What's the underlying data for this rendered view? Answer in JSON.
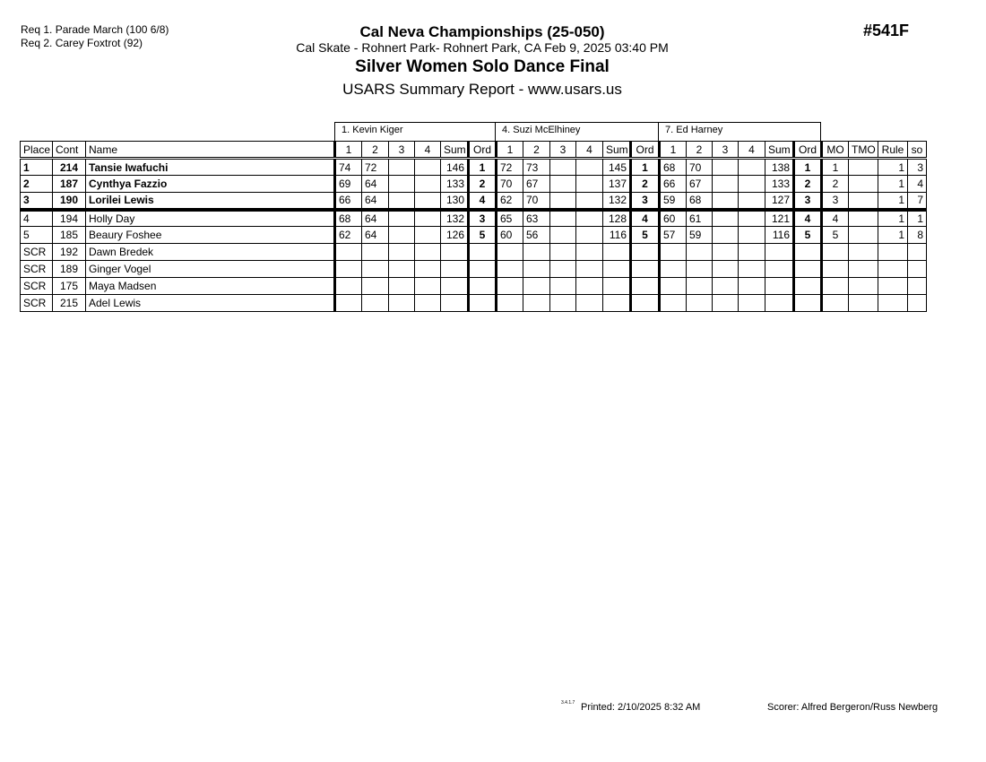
{
  "header": {
    "requirements": [
      "Req  1.  Parade March (100 6/8)",
      "Req  2.  Carey Foxtrot (92)"
    ],
    "competition": "Cal Neva Championships (25-050)",
    "location": "Cal Skate - Rohnert Park- Rohnert Park, CA  Feb 9, 2025  03:40 PM",
    "event": "Silver Women Solo Dance Final",
    "report": "USARS Summary Report - www.usars.us",
    "event_number": "#541F"
  },
  "judges": [
    "1.  Kevin Kiger",
    "4.  Suzi McElhiney",
    "7.  Ed Harney"
  ],
  "columns": {
    "place": "Place",
    "cont": "Cont",
    "name": "Name",
    "judge_cols": [
      "1",
      "2",
      "3",
      "4",
      "Sum",
      "Ord"
    ],
    "mo": "MO",
    "tmo": "TMO",
    "rule": "Rule",
    "so": "so"
  },
  "rows": [
    {
      "place": "1",
      "cont": "214",
      "name": "Tansie Iwafuchi",
      "bold": true,
      "scores": [
        [
          "74",
          "72",
          "",
          "",
          "146",
          "1"
        ],
        [
          "72",
          "73",
          "",
          "",
          "145",
          "1"
        ],
        [
          "68",
          "70",
          "",
          "",
          "138",
          "1"
        ]
      ],
      "mo": "1",
      "tmo": "",
      "rule": "1",
      "so": "3"
    },
    {
      "place": "2",
      "cont": "187",
      "name": "Cynthya Fazzio",
      "bold": true,
      "scores": [
        [
          "69",
          "64",
          "",
          "",
          "133",
          "2"
        ],
        [
          "70",
          "67",
          "",
          "",
          "137",
          "2"
        ],
        [
          "66",
          "67",
          "",
          "",
          "133",
          "2"
        ]
      ],
      "mo": "2",
      "tmo": "",
      "rule": "1",
      "so": "4"
    },
    {
      "place": "3",
      "cont": "190",
      "name": "Lorilei Lewis",
      "bold": true,
      "scores": [
        [
          "66",
          "64",
          "",
          "",
          "130",
          "4"
        ],
        [
          "62",
          "70",
          "",
          "",
          "132",
          "3"
        ],
        [
          "59",
          "68",
          "",
          "",
          "127",
          "3"
        ]
      ],
      "mo": "3",
      "tmo": "",
      "rule": "1",
      "so": "7"
    },
    {
      "place": "4",
      "cont": "194",
      "name": "Holly Day",
      "bold": false,
      "scores": [
        [
          "68",
          "64",
          "",
          "",
          "132",
          "3"
        ],
        [
          "65",
          "63",
          "",
          "",
          "128",
          "4"
        ],
        [
          "60",
          "61",
          "",
          "",
          "121",
          "4"
        ]
      ],
      "mo": "4",
      "tmo": "",
      "rule": "1",
      "so": "1"
    },
    {
      "place": "5",
      "cont": "185",
      "name": "Beaury Foshee",
      "bold": false,
      "scores": [
        [
          "62",
          "64",
          "",
          "",
          "126",
          "5"
        ],
        [
          "60",
          "56",
          "",
          "",
          "116",
          "5"
        ],
        [
          "57",
          "59",
          "",
          "",
          "116",
          "5"
        ]
      ],
      "mo": "5",
      "tmo": "",
      "rule": "1",
      "so": "8"
    },
    {
      "place": "SCR",
      "cont": "192",
      "name": "Dawn Bredek",
      "bold": false,
      "scores": [
        [
          "",
          "",
          "",
          "",
          "",
          ""
        ],
        [
          "",
          "",
          "",
          "",
          "",
          ""
        ],
        [
          "",
          "",
          "",
          "",
          "",
          ""
        ]
      ],
      "mo": "",
      "tmo": "",
      "rule": "",
      "so": ""
    },
    {
      "place": "SCR",
      "cont": "189",
      "name": "Ginger Vogel",
      "bold": false,
      "scores": [
        [
          "",
          "",
          "",
          "",
          "",
          ""
        ],
        [
          "",
          "",
          "",
          "",
          "",
          ""
        ],
        [
          "",
          "",
          "",
          "",
          "",
          ""
        ]
      ],
      "mo": "",
      "tmo": "",
      "rule": "",
      "so": ""
    },
    {
      "place": "SCR",
      "cont": "175",
      "name": "Maya Madsen",
      "bold": false,
      "scores": [
        [
          "",
          "",
          "",
          "",
          "",
          ""
        ],
        [
          "",
          "",
          "",
          "",
          "",
          ""
        ],
        [
          "",
          "",
          "",
          "",
          "",
          ""
        ]
      ],
      "mo": "",
      "tmo": "",
      "rule": "",
      "so": ""
    },
    {
      "place": "SCR",
      "cont": "215",
      "name": "Adel Lewis",
      "bold": false,
      "scores": [
        [
          "",
          "",
          "",
          "",
          "",
          ""
        ],
        [
          "",
          "",
          "",
          "",
          "",
          ""
        ],
        [
          "",
          "",
          "",
          "",
          "",
          ""
        ]
      ],
      "mo": "",
      "tmo": "",
      "rule": "",
      "so": ""
    }
  ],
  "footer": {
    "version": "3.4.1.7",
    "printed": "Printed:  2/10/2025  8:32 AM",
    "scorer": "Scorer:   Alfred Bergeron/Russ Newberg"
  }
}
